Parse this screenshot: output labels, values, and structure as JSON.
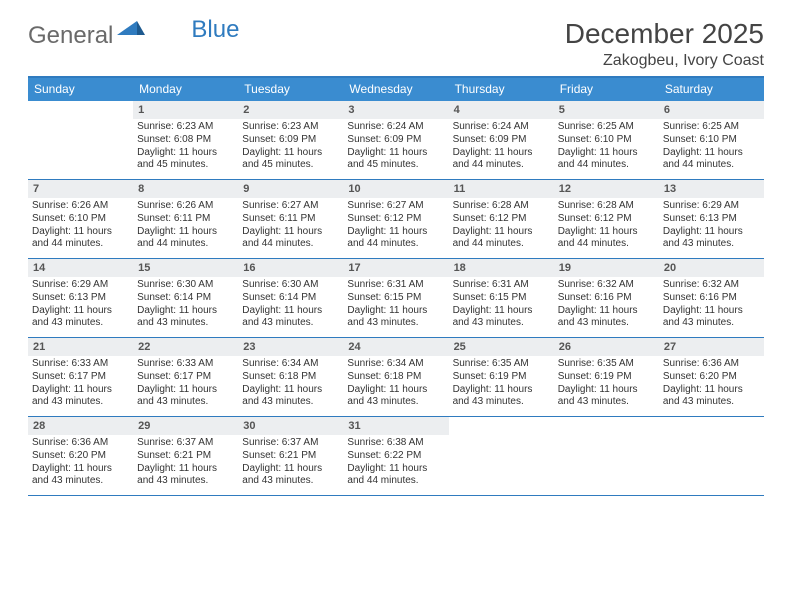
{
  "logo": {
    "text_a": "General",
    "text_b": "Blue"
  },
  "title": "December 2025",
  "location": "Zakogbeu, Ivory Coast",
  "colors": {
    "header_bg": "#3a8cd0",
    "border": "#2f7bbf",
    "daynum_bg": "#eceef0",
    "text": "#333333",
    "logo_gray": "#6a6a6a",
    "logo_blue": "#2f7bbf"
  },
  "day_names": [
    "Sunday",
    "Monday",
    "Tuesday",
    "Wednesday",
    "Thursday",
    "Friday",
    "Saturday"
  ],
  "weeks": [
    [
      {
        "empty": true
      },
      {
        "n": "1",
        "sunrise": "Sunrise: 6:23 AM",
        "sunset": "Sunset: 6:08 PM",
        "d1": "Daylight: 11 hours",
        "d2": "and 45 minutes."
      },
      {
        "n": "2",
        "sunrise": "Sunrise: 6:23 AM",
        "sunset": "Sunset: 6:09 PM",
        "d1": "Daylight: 11 hours",
        "d2": "and 45 minutes."
      },
      {
        "n": "3",
        "sunrise": "Sunrise: 6:24 AM",
        "sunset": "Sunset: 6:09 PM",
        "d1": "Daylight: 11 hours",
        "d2": "and 45 minutes."
      },
      {
        "n": "4",
        "sunrise": "Sunrise: 6:24 AM",
        "sunset": "Sunset: 6:09 PM",
        "d1": "Daylight: 11 hours",
        "d2": "and 44 minutes."
      },
      {
        "n": "5",
        "sunrise": "Sunrise: 6:25 AM",
        "sunset": "Sunset: 6:10 PM",
        "d1": "Daylight: 11 hours",
        "d2": "and 44 minutes."
      },
      {
        "n": "6",
        "sunrise": "Sunrise: 6:25 AM",
        "sunset": "Sunset: 6:10 PM",
        "d1": "Daylight: 11 hours",
        "d2": "and 44 minutes."
      }
    ],
    [
      {
        "n": "7",
        "sunrise": "Sunrise: 6:26 AM",
        "sunset": "Sunset: 6:10 PM",
        "d1": "Daylight: 11 hours",
        "d2": "and 44 minutes."
      },
      {
        "n": "8",
        "sunrise": "Sunrise: 6:26 AM",
        "sunset": "Sunset: 6:11 PM",
        "d1": "Daylight: 11 hours",
        "d2": "and 44 minutes."
      },
      {
        "n": "9",
        "sunrise": "Sunrise: 6:27 AM",
        "sunset": "Sunset: 6:11 PM",
        "d1": "Daylight: 11 hours",
        "d2": "and 44 minutes."
      },
      {
        "n": "10",
        "sunrise": "Sunrise: 6:27 AM",
        "sunset": "Sunset: 6:12 PM",
        "d1": "Daylight: 11 hours",
        "d2": "and 44 minutes."
      },
      {
        "n": "11",
        "sunrise": "Sunrise: 6:28 AM",
        "sunset": "Sunset: 6:12 PM",
        "d1": "Daylight: 11 hours",
        "d2": "and 44 minutes."
      },
      {
        "n": "12",
        "sunrise": "Sunrise: 6:28 AM",
        "sunset": "Sunset: 6:12 PM",
        "d1": "Daylight: 11 hours",
        "d2": "and 44 minutes."
      },
      {
        "n": "13",
        "sunrise": "Sunrise: 6:29 AM",
        "sunset": "Sunset: 6:13 PM",
        "d1": "Daylight: 11 hours",
        "d2": "and 43 minutes."
      }
    ],
    [
      {
        "n": "14",
        "sunrise": "Sunrise: 6:29 AM",
        "sunset": "Sunset: 6:13 PM",
        "d1": "Daylight: 11 hours",
        "d2": "and 43 minutes."
      },
      {
        "n": "15",
        "sunrise": "Sunrise: 6:30 AM",
        "sunset": "Sunset: 6:14 PM",
        "d1": "Daylight: 11 hours",
        "d2": "and 43 minutes."
      },
      {
        "n": "16",
        "sunrise": "Sunrise: 6:30 AM",
        "sunset": "Sunset: 6:14 PM",
        "d1": "Daylight: 11 hours",
        "d2": "and 43 minutes."
      },
      {
        "n": "17",
        "sunrise": "Sunrise: 6:31 AM",
        "sunset": "Sunset: 6:15 PM",
        "d1": "Daylight: 11 hours",
        "d2": "and 43 minutes."
      },
      {
        "n": "18",
        "sunrise": "Sunrise: 6:31 AM",
        "sunset": "Sunset: 6:15 PM",
        "d1": "Daylight: 11 hours",
        "d2": "and 43 minutes."
      },
      {
        "n": "19",
        "sunrise": "Sunrise: 6:32 AM",
        "sunset": "Sunset: 6:16 PM",
        "d1": "Daylight: 11 hours",
        "d2": "and 43 minutes."
      },
      {
        "n": "20",
        "sunrise": "Sunrise: 6:32 AM",
        "sunset": "Sunset: 6:16 PM",
        "d1": "Daylight: 11 hours",
        "d2": "and 43 minutes."
      }
    ],
    [
      {
        "n": "21",
        "sunrise": "Sunrise: 6:33 AM",
        "sunset": "Sunset: 6:17 PM",
        "d1": "Daylight: 11 hours",
        "d2": "and 43 minutes."
      },
      {
        "n": "22",
        "sunrise": "Sunrise: 6:33 AM",
        "sunset": "Sunset: 6:17 PM",
        "d1": "Daylight: 11 hours",
        "d2": "and 43 minutes."
      },
      {
        "n": "23",
        "sunrise": "Sunrise: 6:34 AM",
        "sunset": "Sunset: 6:18 PM",
        "d1": "Daylight: 11 hours",
        "d2": "and 43 minutes."
      },
      {
        "n": "24",
        "sunrise": "Sunrise: 6:34 AM",
        "sunset": "Sunset: 6:18 PM",
        "d1": "Daylight: 11 hours",
        "d2": "and 43 minutes."
      },
      {
        "n": "25",
        "sunrise": "Sunrise: 6:35 AM",
        "sunset": "Sunset: 6:19 PM",
        "d1": "Daylight: 11 hours",
        "d2": "and 43 minutes."
      },
      {
        "n": "26",
        "sunrise": "Sunrise: 6:35 AM",
        "sunset": "Sunset: 6:19 PM",
        "d1": "Daylight: 11 hours",
        "d2": "and 43 minutes."
      },
      {
        "n": "27",
        "sunrise": "Sunrise: 6:36 AM",
        "sunset": "Sunset: 6:20 PM",
        "d1": "Daylight: 11 hours",
        "d2": "and 43 minutes."
      }
    ],
    [
      {
        "n": "28",
        "sunrise": "Sunrise: 6:36 AM",
        "sunset": "Sunset: 6:20 PM",
        "d1": "Daylight: 11 hours",
        "d2": "and 43 minutes."
      },
      {
        "n": "29",
        "sunrise": "Sunrise: 6:37 AM",
        "sunset": "Sunset: 6:21 PM",
        "d1": "Daylight: 11 hours",
        "d2": "and 43 minutes."
      },
      {
        "n": "30",
        "sunrise": "Sunrise: 6:37 AM",
        "sunset": "Sunset: 6:21 PM",
        "d1": "Daylight: 11 hours",
        "d2": "and 43 minutes."
      },
      {
        "n": "31",
        "sunrise": "Sunrise: 6:38 AM",
        "sunset": "Sunset: 6:22 PM",
        "d1": "Daylight: 11 hours",
        "d2": "and 44 minutes."
      },
      {
        "empty": true
      },
      {
        "empty": true
      },
      {
        "empty": true
      }
    ]
  ]
}
